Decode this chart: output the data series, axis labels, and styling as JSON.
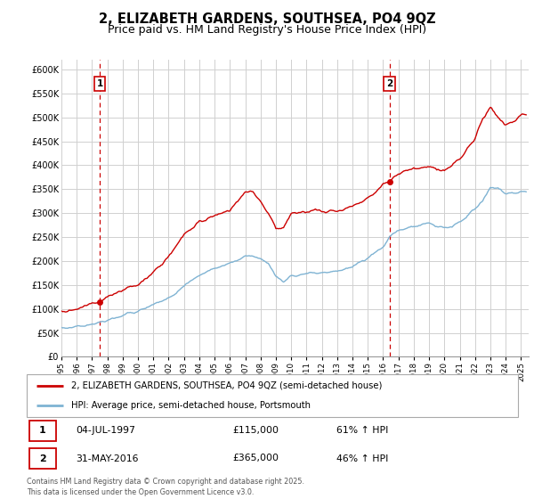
{
  "title": "2, ELIZABETH GARDENS, SOUTHSEA, PO4 9QZ",
  "subtitle": "Price paid vs. HM Land Registry's House Price Index (HPI)",
  "ylim": [
    0,
    620000
  ],
  "yticks": [
    0,
    50000,
    100000,
    150000,
    200000,
    250000,
    300000,
    350000,
    400000,
    450000,
    500000,
    550000,
    600000
  ],
  "xlim_start": 1995.0,
  "xlim_end": 2025.5,
  "sale1_x": 1997.5,
  "sale1_y": 115000,
  "sale2_x": 2016.42,
  "sale2_y": 365000,
  "line_color_red": "#cc0000",
  "line_color_blue": "#7fb3d3",
  "background_color": "#ffffff",
  "grid_color": "#d0d0d0",
  "legend_label_red": "2, ELIZABETH GARDENS, SOUTHSEA, PO4 9QZ (semi-detached house)",
  "legend_label_blue": "HPI: Average price, semi-detached house, Portsmouth",
  "annotation1_num": "1",
  "annotation1_date": "04-JUL-1997",
  "annotation1_price": "£115,000",
  "annotation1_hpi": "61% ↑ HPI",
  "annotation2_num": "2",
  "annotation2_date": "31-MAY-2016",
  "annotation2_price": "£365,000",
  "annotation2_hpi": "46% ↑ HPI",
  "footer": "Contains HM Land Registry data © Crown copyright and database right 2025.\nThis data is licensed under the Open Government Licence v3.0.",
  "title_fontsize": 10.5,
  "subtitle_fontsize": 9
}
